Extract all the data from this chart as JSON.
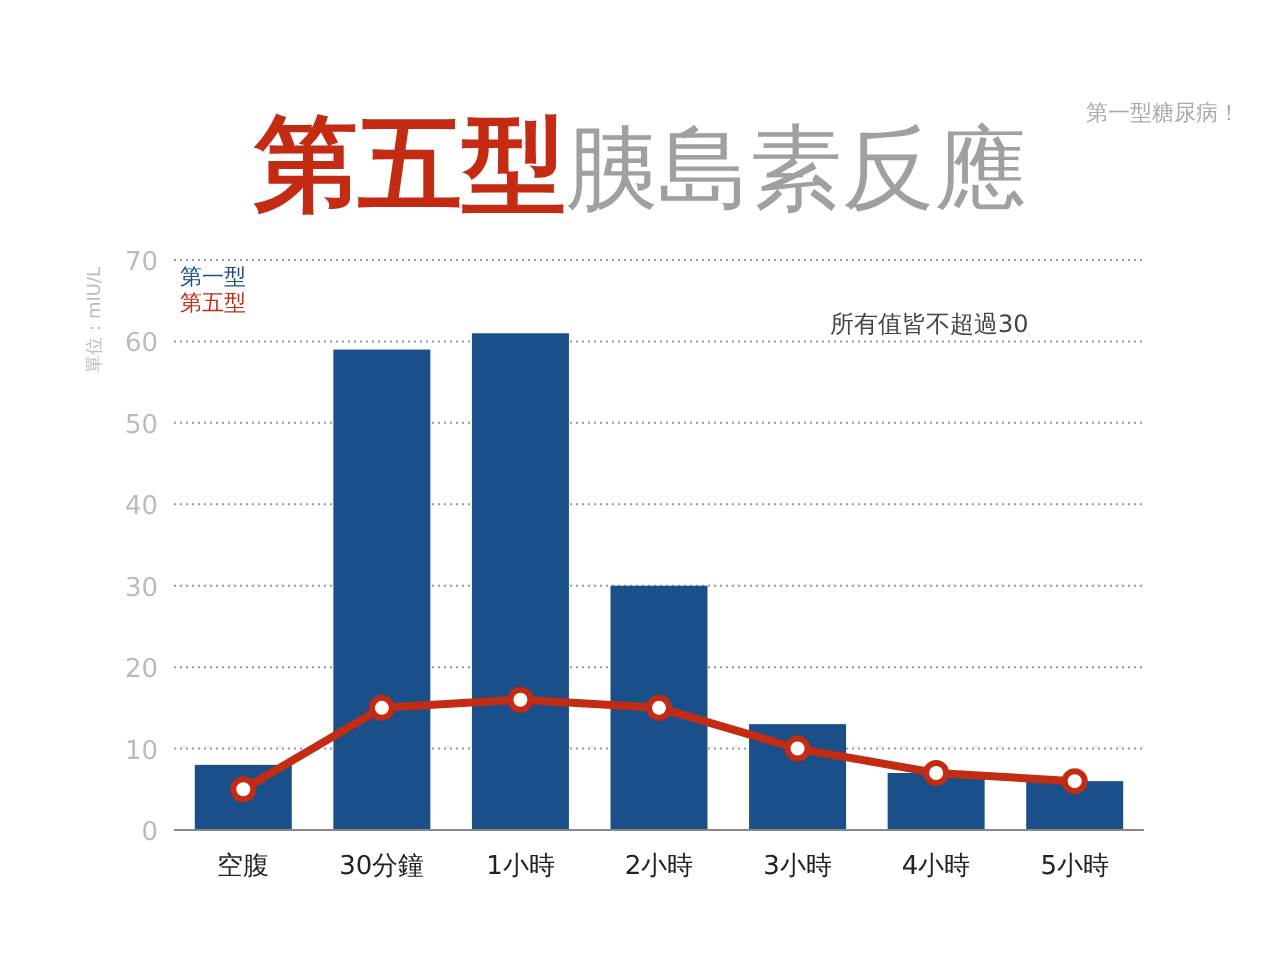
{
  "chart_data": {
    "type": "bar",
    "title": "第五型胰島素反應",
    "ylabel": "單位：mIU/L",
    "categories": [
      "空腹",
      "30分鐘",
      "1小時",
      "2小時",
      "3小時",
      "4小時",
      "5小時"
    ],
    "series": [
      {
        "name": "第一型",
        "color": "#1a4f8a",
        "values": [
          8,
          59,
          61,
          30,
          13,
          7,
          6
        ]
      },
      {
        "name": "第五型",
        "color": "#c42b13",
        "type": "line",
        "values": [
          5,
          15,
          16,
          15,
          10,
          7,
          6
        ]
      }
    ],
    "ylim": [
      0,
      70
    ],
    "yticks": [
      0,
      10,
      20,
      30,
      40,
      50,
      60,
      70
    ],
    "grid": "y",
    "legend": "top left",
    "marker": "circle",
    "line_style": "solid",
    "annotations": [
      "所有值皆不超過30",
      "第一型糖尿病！"
    ]
  }
}
